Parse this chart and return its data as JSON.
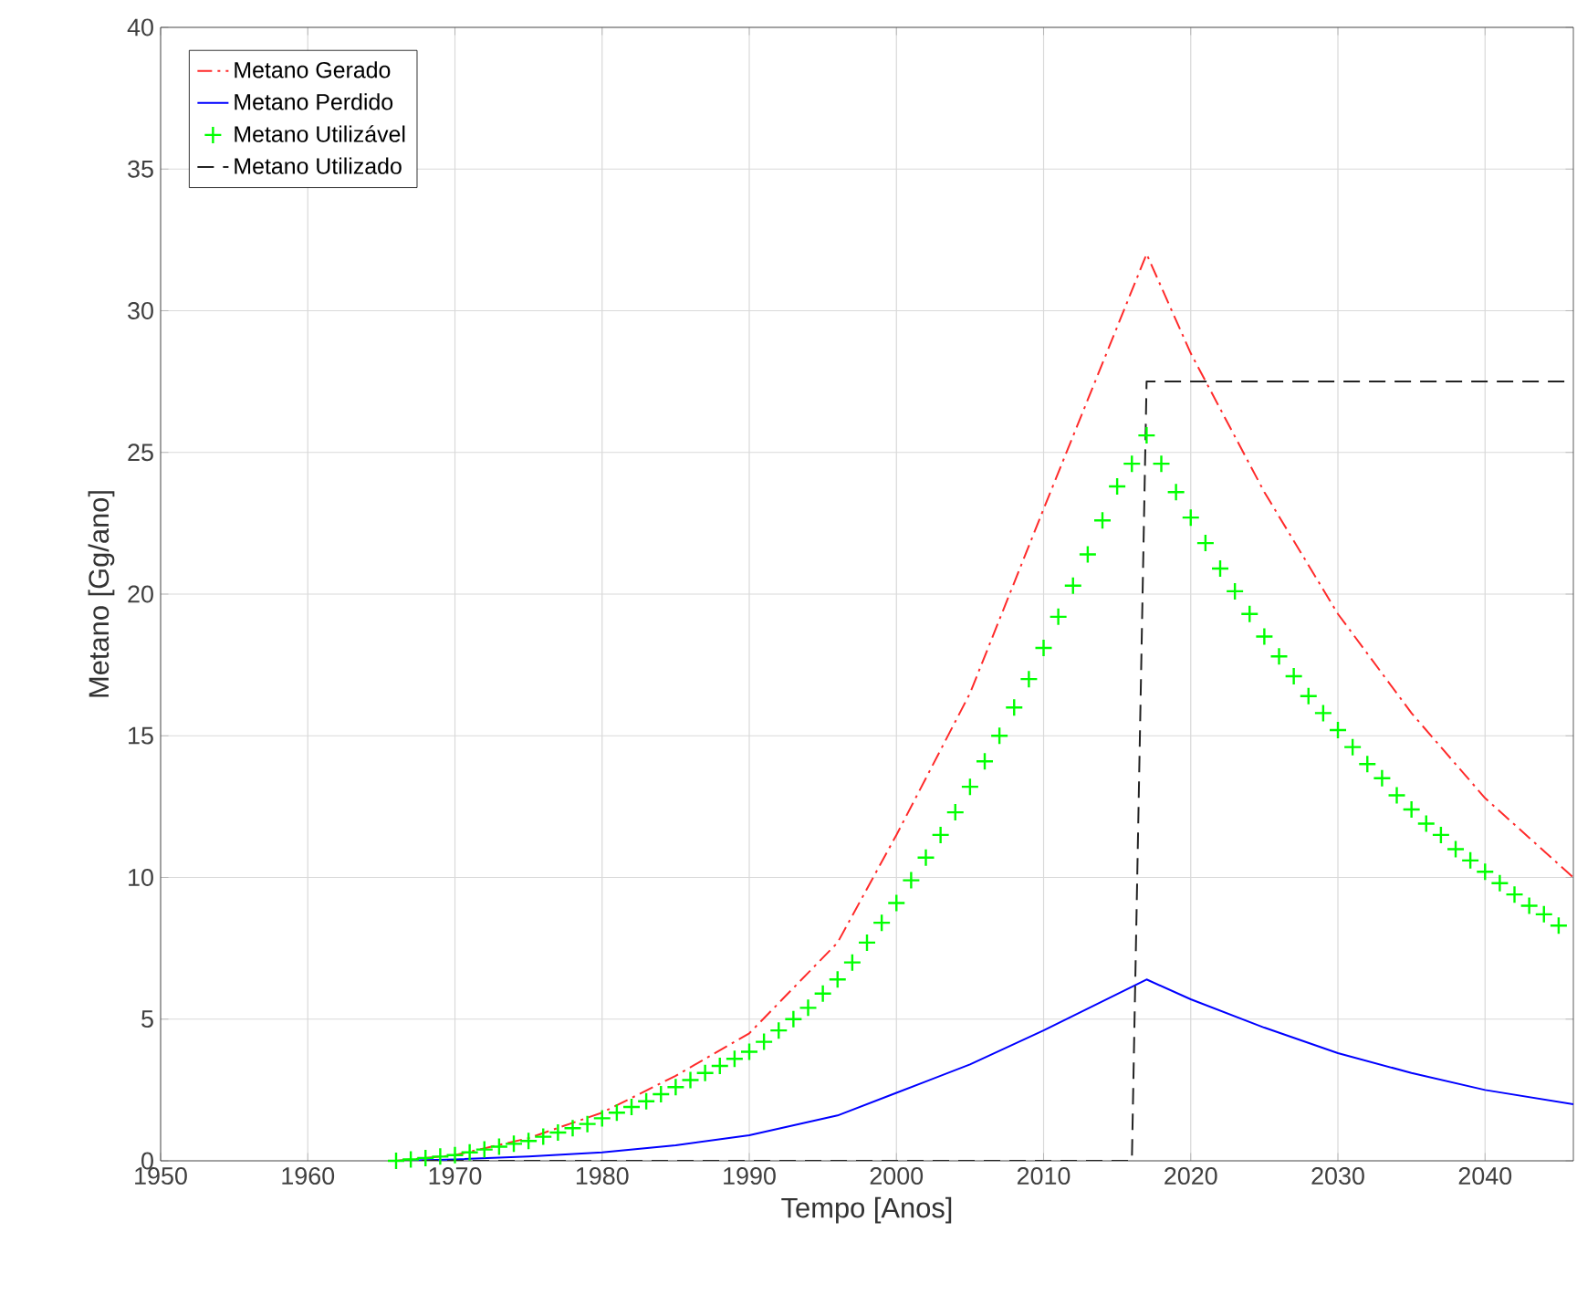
{
  "chart_data": {
    "type": "line",
    "xlabel": "Tempo [Anos]",
    "ylabel": "Metano [Gg/ano]",
    "xlim": [
      1950,
      2046
    ],
    "ylim": [
      0,
      40
    ],
    "xticks": [
      1950,
      1960,
      1970,
      1980,
      1990,
      2000,
      2010,
      2020,
      2030,
      2040
    ],
    "yticks": [
      0,
      5,
      10,
      15,
      20,
      25,
      30,
      35,
      40
    ],
    "grid": true,
    "legend": "top left",
    "series": [
      {
        "name": "Metano Gerado",
        "color": "#ff2a2a",
        "line_style": "dashdot",
        "marker": "none",
        "x": [
          1966,
          1970,
          1975,
          1980,
          1985,
          1990,
          1996,
          2000,
          2005,
          2010,
          2017,
          2020,
          2025,
          2030,
          2035,
          2040,
          2046
        ],
        "values": [
          0,
          0.2,
          0.8,
          1.7,
          3.0,
          4.5,
          7.7,
          11.5,
          16.5,
          23,
          32,
          28.5,
          23.6,
          19.3,
          15.8,
          12.8,
          10
        ]
      },
      {
        "name": "Metano Perdido",
        "color": "#0000ff",
        "line_style": "solid",
        "marker": "none",
        "x": [
          1966,
          1970,
          1975,
          1980,
          1985,
          1990,
          1996,
          2000,
          2005,
          2010,
          2017,
          2020,
          2025,
          2030,
          2035,
          2040,
          2046
        ],
        "values": [
          0,
          0.05,
          0.15,
          0.3,
          0.55,
          0.9,
          1.6,
          2.4,
          3.4,
          4.6,
          6.4,
          5.7,
          4.7,
          3.8,
          3.1,
          2.5,
          2.0
        ]
      },
      {
        "name": "Metano Utilizável",
        "color": "#00ff00",
        "type": "scatter",
        "marker": "cross",
        "x": [
          1966,
          1967,
          1968,
          1969,
          1970,
          1971,
          1972,
          1973,
          1974,
          1975,
          1976,
          1977,
          1978,
          1979,
          1980,
          1981,
          1982,
          1983,
          1984,
          1985,
          1986,
          1987,
          1988,
          1989,
          1990,
          1991,
          1992,
          1993,
          1994,
          1995,
          1996,
          1997,
          1998,
          1999,
          2000,
          2001,
          2002,
          2003,
          2004,
          2005,
          2006,
          2007,
          2008,
          2009,
          2010,
          2011,
          2012,
          2013,
          2014,
          2015,
          2016,
          2017,
          2018,
          2019,
          2020,
          2021,
          2022,
          2023,
          2024,
          2025,
          2026,
          2027,
          2028,
          2029,
          2030,
          2031,
          2032,
          2033,
          2034,
          2035,
          2036,
          2037,
          2038,
          2039,
          2040,
          2041,
          2042,
          2043,
          2044,
          2045
        ],
        "values": [
          0,
          0.05,
          0.1,
          0.15,
          0.2,
          0.3,
          0.4,
          0.5,
          0.6,
          0.7,
          0.85,
          1.0,
          1.15,
          1.3,
          1.5,
          1.7,
          1.9,
          2.1,
          2.35,
          2.6,
          2.85,
          3.1,
          3.35,
          3.6,
          3.85,
          4.2,
          4.6,
          5.0,
          5.4,
          5.9,
          6.4,
          7.0,
          7.7,
          8.4,
          9.1,
          9.9,
          10.7,
          11.5,
          12.3,
          13.2,
          14.1,
          15.0,
          16.0,
          17.0,
          18.1,
          19.2,
          20.3,
          21.4,
          22.6,
          23.8,
          24.6,
          25.6,
          24.6,
          23.6,
          22.7,
          21.8,
          20.9,
          20.1,
          19.3,
          18.5,
          17.8,
          17.1,
          16.4,
          15.8,
          15.2,
          14.6,
          14.0,
          13.5,
          12.9,
          12.4,
          11.9,
          11.5,
          11.0,
          10.6,
          10.2,
          9.8,
          9.4,
          9.0,
          8.7,
          8.3
        ]
      },
      {
        "name": "Metano Utilizado",
        "color": "#222222",
        "line_style": "dashed",
        "marker": "none",
        "x": [
          1966,
          2016,
          2017,
          2046
        ],
        "values": [
          0,
          0,
          27.5,
          27.5
        ]
      }
    ]
  }
}
